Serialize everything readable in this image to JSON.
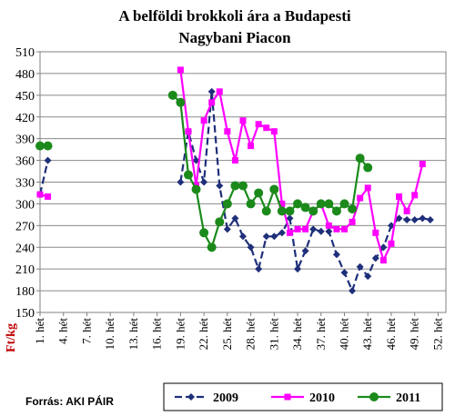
{
  "chart_data": {
    "type": "line",
    "title_line1": "A belföldi brokkoli ára a Budapesti",
    "title_line2": "Nagybani Piacon",
    "ylabel": "Ft/kg",
    "ylim": [
      150,
      510
    ],
    "yticks": [
      150,
      180,
      210,
      240,
      270,
      300,
      330,
      360,
      390,
      420,
      450,
      480,
      510
    ],
    "xlim": [
      1,
      53
    ],
    "xtick_weeks": [
      1,
      4,
      7,
      10,
      13,
      16,
      19,
      22,
      25,
      28,
      31,
      34,
      37,
      40,
      43,
      46,
      49,
      52
    ],
    "xtick_labels": [
      "1. hét",
      "4. hét",
      "7. hét",
      "10. hét",
      "13. hét",
      "16. hét",
      "19. hét",
      "22. hét",
      "25. hét",
      "28. hét",
      "31. hét",
      "34. hét",
      "37. hét",
      "40. hét",
      "43. hét",
      "46. hét",
      "49. hét",
      "52. hét"
    ],
    "grid": true,
    "legend_position": "bottom-right",
    "source": "Forrás: AKI PÁIR",
    "series": [
      {
        "name": "2009",
        "color": "#1f2f7a",
        "marker": "diamond",
        "dashed": true,
        "segments": [
          [
            [
              1,
              313
            ],
            [
              2,
              360
            ]
          ],
          [
            [
              19,
              330
            ],
            [
              20,
              400
            ],
            [
              21,
              360
            ],
            [
              22,
              330
            ],
            [
              23,
              455
            ],
            [
              24,
              325
            ],
            [
              25,
              265
            ],
            [
              26,
              280
            ],
            [
              27,
              255
            ],
            [
              28,
              240
            ],
            [
              29,
              210
            ],
            [
              30,
              255
            ],
            [
              31,
              255
            ],
            [
              32,
              260
            ],
            [
              33,
              280
            ],
            [
              34,
              210
            ],
            [
              35,
              235
            ],
            [
              36,
              265
            ],
            [
              37,
              262
            ],
            [
              38,
              262
            ],
            [
              39,
              230
            ],
            [
              40,
              205
            ],
            [
              41,
              180
            ],
            [
              42,
              213
            ],
            [
              43,
              200
            ],
            [
              44,
              225
            ],
            [
              45,
              240
            ],
            [
              46,
              270
            ],
            [
              47,
              280
            ],
            [
              48,
              278
            ],
            [
              49,
              278
            ],
            [
              50,
              280
            ],
            [
              51,
              278
            ]
          ]
        ]
      },
      {
        "name": "2010",
        "color": "#ff00ff",
        "marker": "square",
        "dashed": false,
        "segments": [
          [
            [
              1,
              313
            ],
            [
              2,
              310
            ]
          ],
          [
            [
              19,
              485
            ],
            [
              20,
              400
            ],
            [
              21,
              325
            ],
            [
              22,
              415
            ],
            [
              23,
              440
            ],
            [
              24,
              455
            ],
            [
              25,
              400
            ],
            [
              26,
              360
            ],
            [
              27,
              415
            ],
            [
              28,
              380
            ],
            [
              29,
              410
            ],
            [
              30,
              405
            ],
            [
              31,
              400
            ],
            [
              32,
              300
            ],
            [
              33,
              260
            ],
            [
              34,
              265
            ],
            [
              35,
              265
            ],
            [
              36,
              290
            ],
            [
              37,
              300
            ],
            [
              38,
              270
            ],
            [
              39,
              265
            ],
            [
              40,
              265
            ],
            [
              41,
              275
            ],
            [
              42,
              308
            ],
            [
              43,
              322
            ],
            [
              44,
              260
            ],
            [
              45,
              222
            ],
            [
              46,
              245
            ],
            [
              47,
              310
            ],
            [
              48,
              290
            ],
            [
              49,
              312
            ],
            [
              50,
              355
            ]
          ]
        ]
      },
      {
        "name": "2011",
        "color": "#1b8a1b",
        "marker": "circle",
        "dashed": false,
        "segments": [
          [
            [
              1,
              380
            ],
            [
              2,
              380
            ]
          ],
          [
            [
              18,
              450
            ],
            [
              19,
              440
            ],
            [
              20,
              340
            ],
            [
              21,
              320
            ],
            [
              22,
              260
            ],
            [
              23,
              240
            ],
            [
              24,
              275
            ],
            [
              25,
              300
            ],
            [
              26,
              325
            ],
            [
              27,
              325
            ],
            [
              28,
              300
            ],
            [
              29,
              315
            ],
            [
              30,
              290
            ],
            [
              31,
              320
            ],
            [
              32,
              290
            ],
            [
              33,
              290
            ],
            [
              34,
              300
            ],
            [
              35,
              295
            ],
            [
              36,
              290
            ],
            [
              37,
              300
            ],
            [
              38,
              300
            ],
            [
              39,
              290
            ],
            [
              40,
              300
            ],
            [
              41,
              293
            ],
            [
              42,
              363
            ],
            [
              43,
              350
            ]
          ]
        ]
      }
    ]
  }
}
